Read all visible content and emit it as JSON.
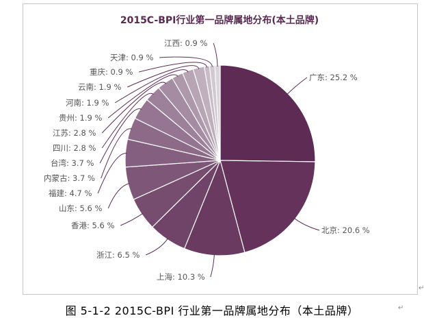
{
  "chart_data": {
    "type": "pie",
    "title": "2015C-BPI行业第一品牌属地分布(本土品牌)",
    "legend": "none",
    "slices": [
      {
        "name": "广东",
        "value": 25.2,
        "label": "广东: 25.2 %",
        "color": "#5e2b55"
      },
      {
        "name": "北京",
        "value": 20.6,
        "label": "北京: 20.6 %",
        "color": "#64325b"
      },
      {
        "name": "上海",
        "value": 10.3,
        "label": "上海: 10.3 %",
        "color": "#6a3a61"
      },
      {
        "name": "浙江",
        "value": 6.5,
        "label": "浙江: 6.5 %",
        "color": "#704368"
      },
      {
        "name": "香港",
        "value": 5.6,
        "label": "香港: 5.6 %",
        "color": "#764c6f"
      },
      {
        "name": "山东",
        "value": 5.6,
        "label": "山东: 5.6 %",
        "color": "#7e5677"
      },
      {
        "name": "福建",
        "value": 4.7,
        "label": "福建: 4.7 %",
        "color": "#855f7f"
      },
      {
        "name": "内蒙古",
        "value": 3.7,
        "label": "内蒙古: 3.7 %",
        "color": "#8d6a88"
      },
      {
        "name": "台湾",
        "value": 3.7,
        "label": "台湾: 3.7 %",
        "color": "#957591"
      },
      {
        "name": "四川",
        "value": 2.8,
        "label": "四川: 2.8 %",
        "color": "#9d809a"
      },
      {
        "name": "江苏",
        "value": 2.8,
        "label": "江苏: 2.8 %",
        "color": "#a68ca3"
      },
      {
        "name": "贵州",
        "value": 1.9,
        "label": "贵州: 1.9 %",
        "color": "#ae98ac"
      },
      {
        "name": "河南",
        "value": 1.9,
        "label": "河南: 1.9 %",
        "color": "#b7a4b5"
      },
      {
        "name": "云南",
        "value": 1.9,
        "label": "云南: 1.9 %",
        "color": "#c0b0be"
      },
      {
        "name": "重庆",
        "value": 0.9,
        "label": "重庆: 0.9 %",
        "color": "#c9bcc7"
      },
      {
        "name": "天津",
        "value": 0.9,
        "label": "天津: 0.9 %",
        "color": "#d2c8d0"
      },
      {
        "name": "江西",
        "value": 0.9,
        "label": "江西: 0.9 %",
        "color": "#dbd4da"
      }
    ]
  },
  "caption": "图 5-1-2 2015C-BPI 行业第一品牌属地分布（本土品牌）",
  "paragraph_mark": "↵",
  "colors": {
    "title": "#5a2a52",
    "label": "#555555",
    "leader": "#5e2b55",
    "slice_border": "#ffffff"
  }
}
